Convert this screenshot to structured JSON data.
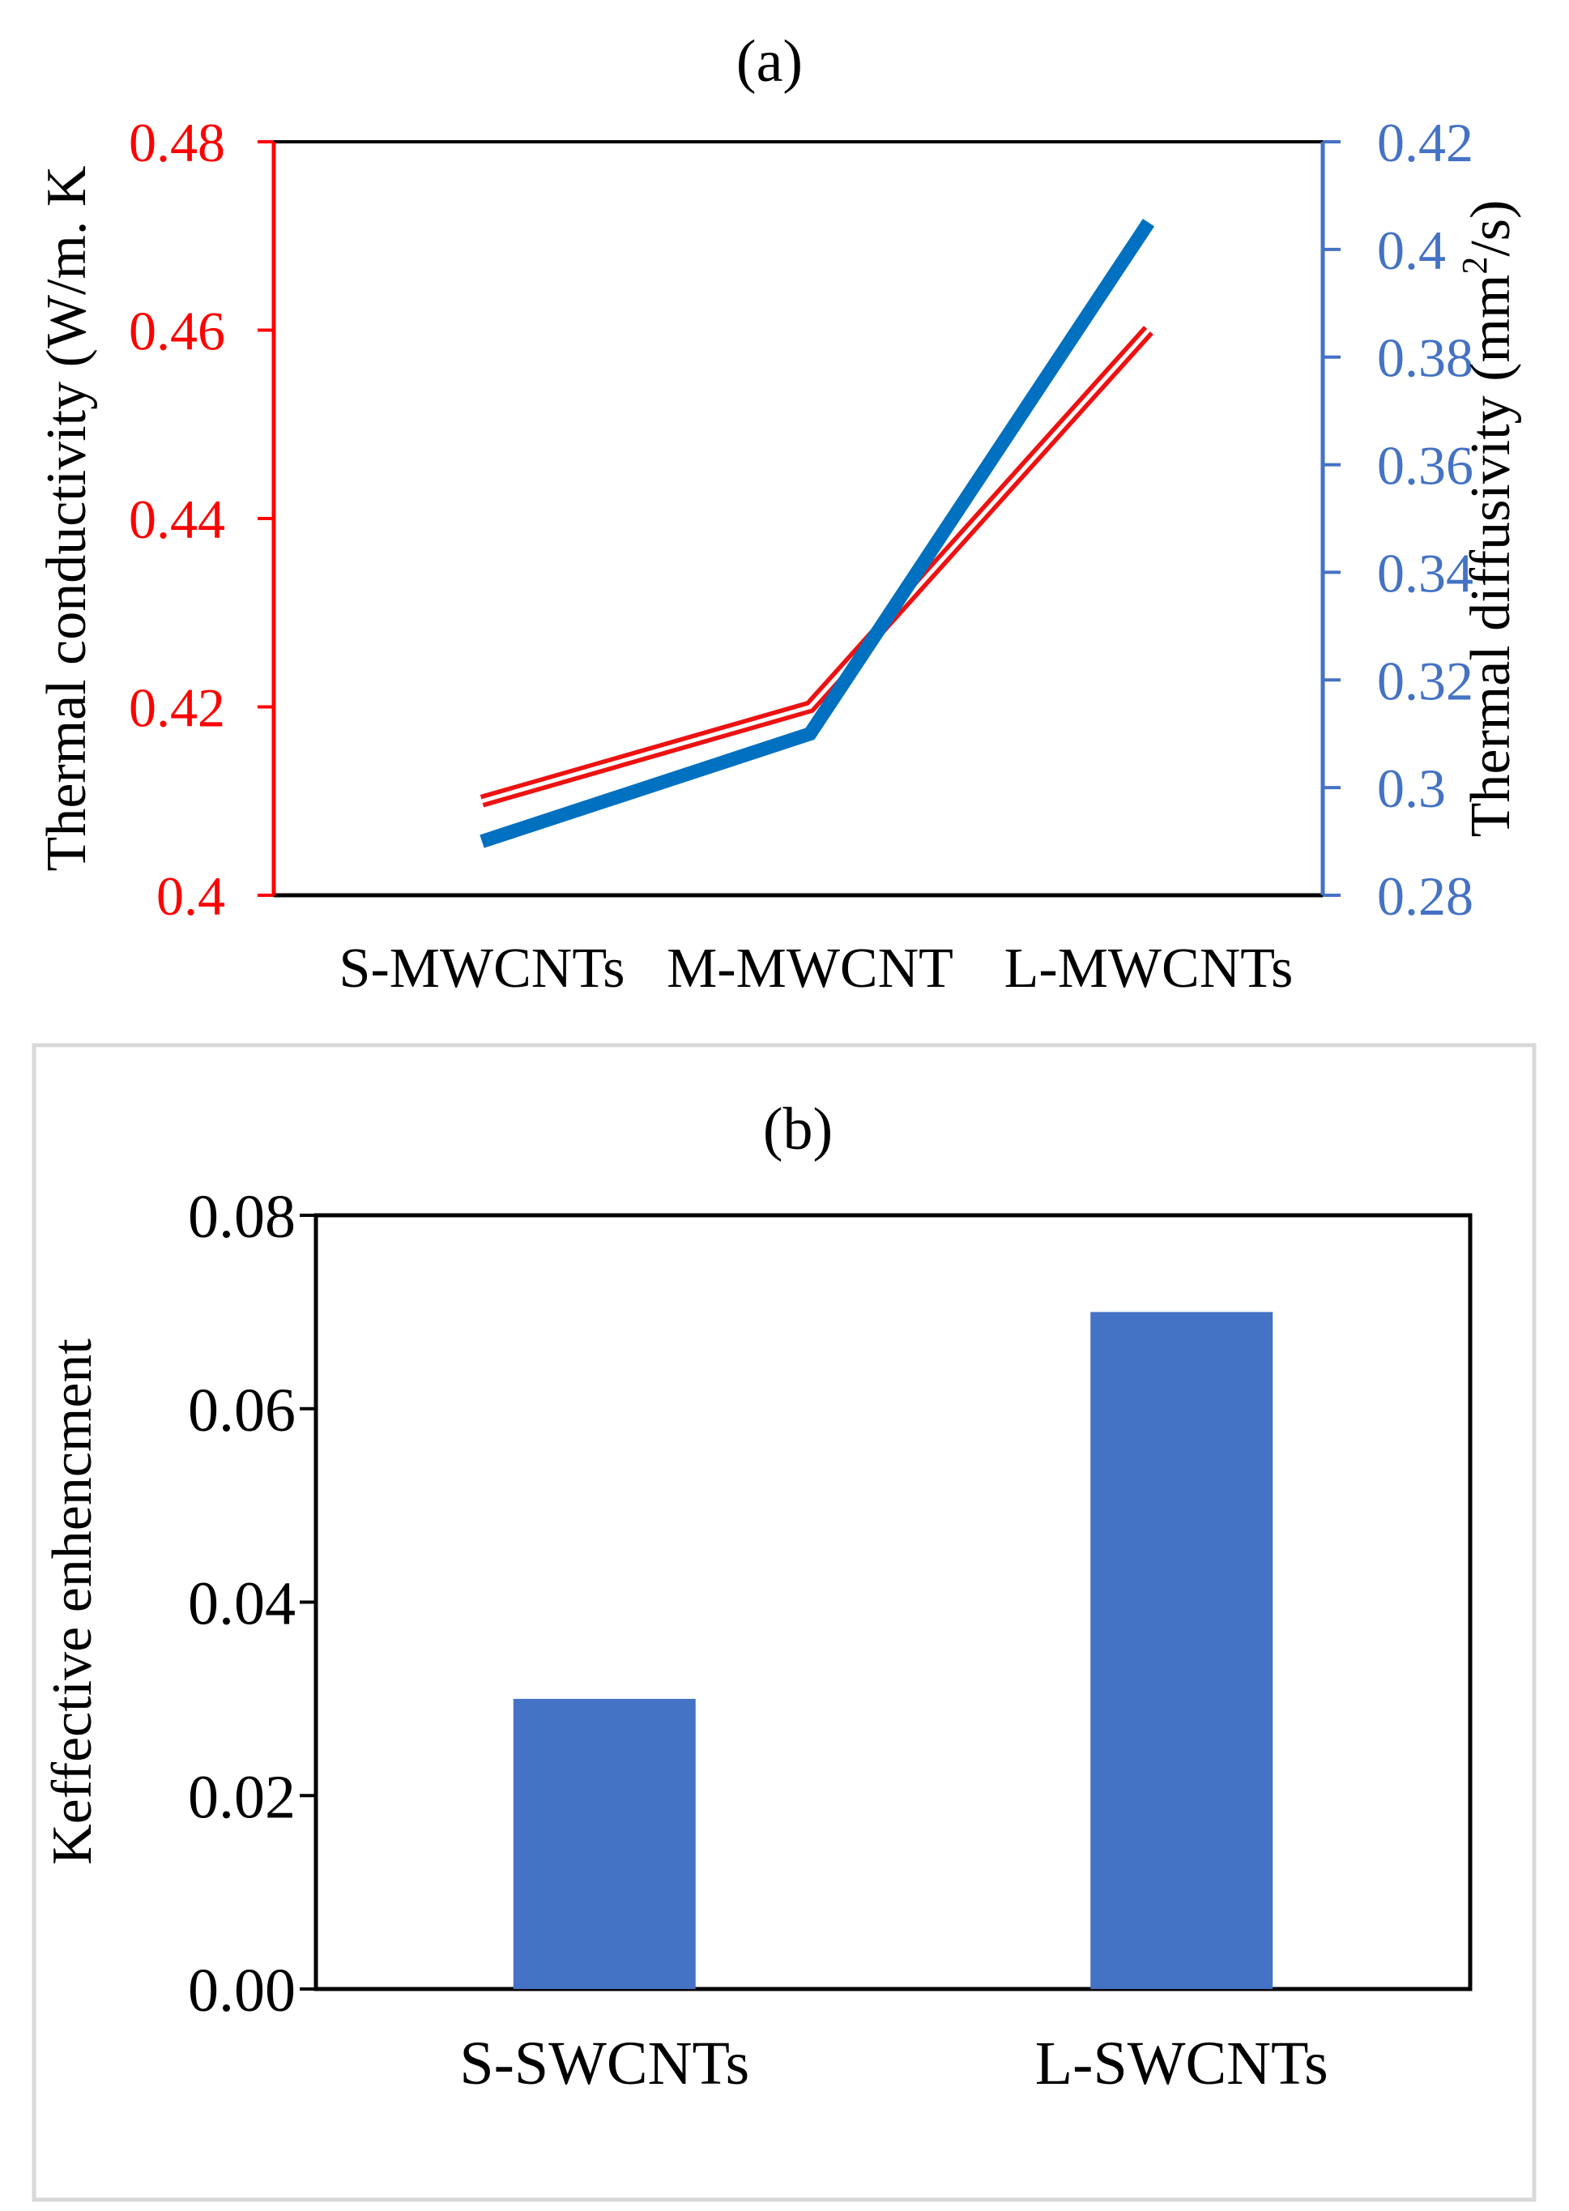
{
  "colors": {
    "red_axis": "#ff0000",
    "red_line": "#ee1111",
    "blue_axis": "#4472c4",
    "blue_line": "#0070c0",
    "bar": "#4472c4",
    "frame_b": "#d9d9d9",
    "text": "#000000"
  },
  "chart_data": [
    {
      "type": "line",
      "title": "(a)",
      "categories": [
        "S-MWCNTs",
        "M-MWCNT",
        "L-MWCNTs"
      ],
      "y_left": {
        "label": "Thermal conductivity (W/m. K",
        "ylim": [
          0.4,
          0.48
        ],
        "ticks": [
          "0.4",
          "0.42",
          "0.44",
          "0.46",
          "0.48"
        ]
      },
      "y_right": {
        "label_parts": [
          "Thermal diffusivity (mm",
          "2",
          "/s)"
        ],
        "ylim": [
          0.28,
          0.42
        ],
        "ticks": [
          "0.28",
          "0.3",
          "0.32",
          "0.34",
          "0.36",
          "0.38",
          "0.4",
          "0.42"
        ]
      },
      "series": [
        {
          "axis": "left",
          "style": "double-red",
          "values": [
            0.41,
            0.42,
            0.46
          ]
        },
        {
          "axis": "right",
          "style": "thick-blue",
          "values": [
            0.29,
            0.31,
            0.405
          ]
        }
      ],
      "grid": false,
      "legend": "none"
    },
    {
      "type": "bar",
      "title": "(b)",
      "categories": [
        "S-SWCNTs",
        "L-SWCNTs"
      ],
      "values": [
        0.03,
        0.07
      ],
      "ylabel": "Keffective enhencment",
      "ylim": [
        0,
        0.08
      ],
      "ticks": [
        "0.00",
        "0.02",
        "0.04",
        "0.06",
        "0.08"
      ],
      "grid": false,
      "legend": "none"
    }
  ]
}
